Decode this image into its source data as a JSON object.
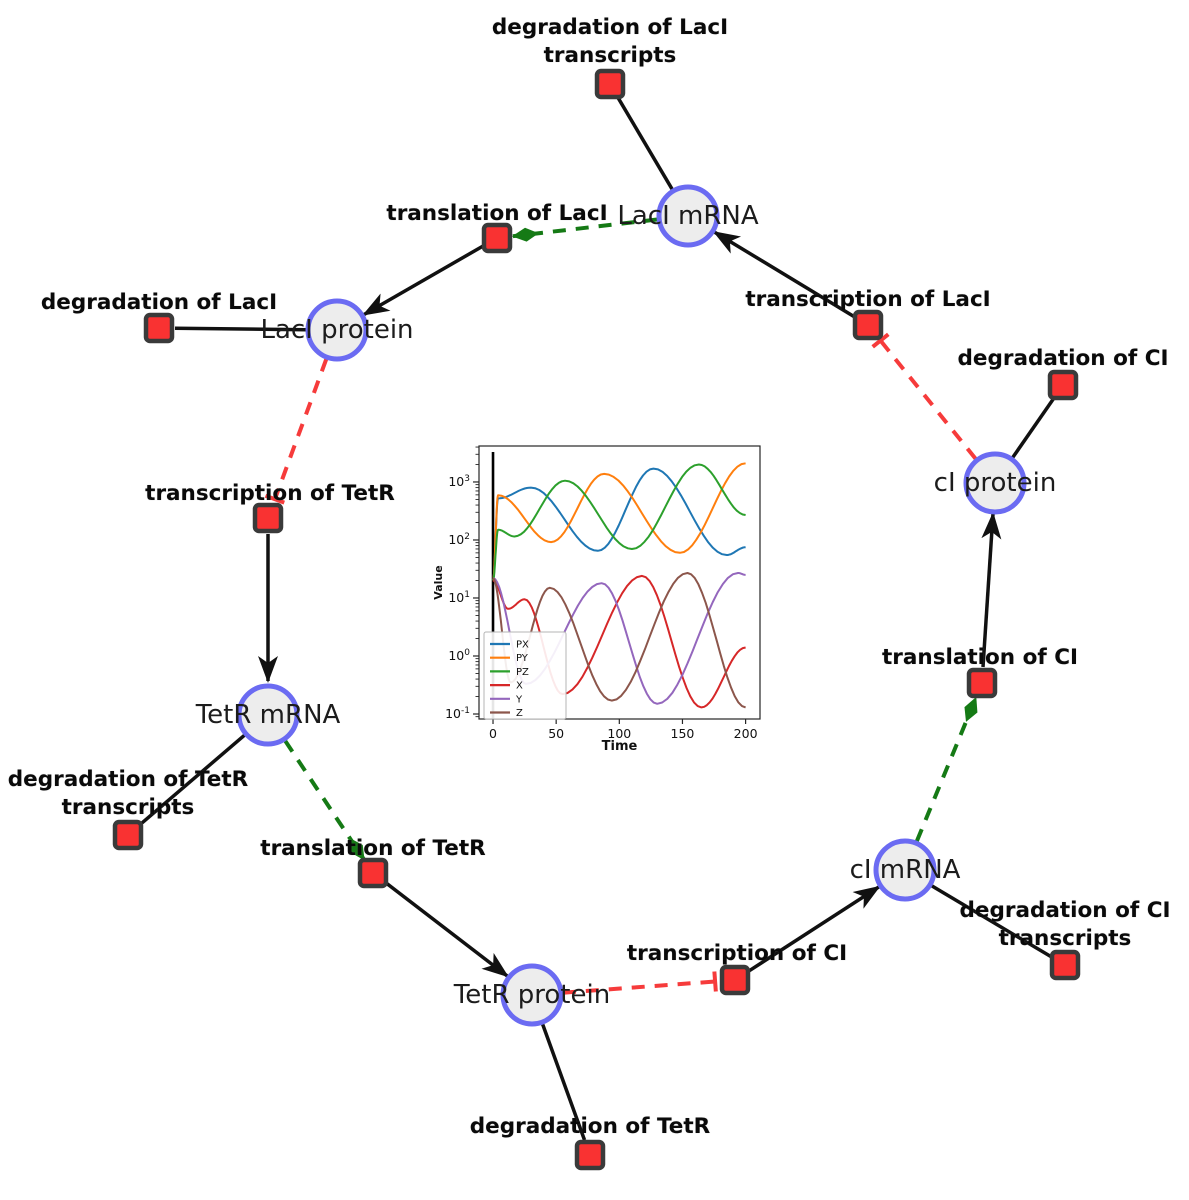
{
  "window": {
    "background": "#ffffff"
  },
  "graph": {
    "colors": {
      "species_fill": "#ededed",
      "species_stroke": "#6b6bf2",
      "reaction_fill": "#f93232",
      "reaction_stroke": "#3a3a3a",
      "production_edge": "#111111",
      "modifier_edge": "#157a15",
      "inhibition_edge": "#f63b3b"
    },
    "species": [
      {
        "id": "laci-mrna",
        "label": "LacI mRNA"
      },
      {
        "id": "laci-protein",
        "label": "LacI protein"
      },
      {
        "id": "tetr-mrna",
        "label": "TetR mRNA"
      },
      {
        "id": "tetr-protein",
        "label": "TetR protein"
      },
      {
        "id": "ci-mrna",
        "label": "cI mRNA"
      },
      {
        "id": "ci-protein",
        "label": "cI protein"
      }
    ],
    "reactions": [
      {
        "id": "deg-laci-transcripts",
        "lines": [
          "degradation of LacI",
          "transcripts"
        ]
      },
      {
        "id": "translation-laci",
        "lines": [
          "translation of LacI"
        ]
      },
      {
        "id": "transcription-laci",
        "lines": [
          "transcription of LacI"
        ]
      },
      {
        "id": "deg-ci",
        "lines": [
          "degradation of CI"
        ]
      },
      {
        "id": "deg-laci",
        "lines": [
          "degradation of LacI"
        ]
      },
      {
        "id": "transcription-tetr",
        "lines": [
          "transcription of TetR"
        ]
      },
      {
        "id": "deg-tetr-transcripts",
        "lines": [
          "degradation of TetR",
          "transcripts"
        ]
      },
      {
        "id": "translation-tetr",
        "lines": [
          "translation of TetR"
        ]
      },
      {
        "id": "deg-tetr",
        "lines": [
          "degradation of TetR"
        ]
      },
      {
        "id": "transcription-ci",
        "lines": [
          "transcription of CI"
        ]
      },
      {
        "id": "deg-ci-transcripts",
        "lines": [
          "degradation of CI",
          "transcripts"
        ]
      },
      {
        "id": "translation-ci",
        "lines": [
          "translation of CI"
        ]
      }
    ],
    "edges": [
      {
        "from": "LacI mRNA",
        "to": "degradation of LacI transcripts",
        "type": "reactant"
      },
      {
        "from": "translation of LacI",
        "to": "LacI protein",
        "type": "product"
      },
      {
        "from": "LacI mRNA",
        "to": "translation of LacI",
        "type": "modifier"
      },
      {
        "from": "transcription of LacI",
        "to": "LacI mRNA",
        "type": "product"
      },
      {
        "from": "cI protein",
        "to": "transcription of LacI",
        "type": "inhibition"
      },
      {
        "from": "LacI protein",
        "to": "degradation of LacI",
        "type": "reactant"
      },
      {
        "from": "LacI protein",
        "to": "transcription of TetR",
        "type": "inhibition"
      },
      {
        "from": "transcription of TetR",
        "to": "TetR mRNA",
        "type": "product"
      },
      {
        "from": "TetR mRNA",
        "to": "degradation of TetR transcripts",
        "type": "reactant"
      },
      {
        "from": "TetR mRNA",
        "to": "translation of TetR",
        "type": "modifier"
      },
      {
        "from": "translation of TetR",
        "to": "TetR protein",
        "type": "product"
      },
      {
        "from": "TetR protein",
        "to": "degradation of TetR",
        "type": "reactant"
      },
      {
        "from": "TetR protein",
        "to": "transcription of CI",
        "type": "inhibition"
      },
      {
        "from": "transcription of CI",
        "to": "cI mRNA",
        "type": "product"
      },
      {
        "from": "cI mRNA",
        "to": "degradation of CI transcripts",
        "type": "reactant"
      },
      {
        "from": "cI mRNA",
        "to": "translation of CI",
        "type": "modifier"
      },
      {
        "from": "translation of CI",
        "to": "cI protein",
        "type": "product"
      },
      {
        "from": "cI protein",
        "to": "degradation of CI",
        "type": "reactant"
      }
    ]
  },
  "chart_data": {
    "type": "line",
    "title": "",
    "xlabel": "Time",
    "ylabel": "Value",
    "xscale": "linear",
    "yscale": "log",
    "xlim": [
      -11.1,
      211.4
    ],
    "ylim": [
      0.082,
      4170
    ],
    "xticks": [
      0,
      50,
      100,
      150,
      200
    ],
    "ytick_exponents": [
      3,
      2,
      1,
      0,
      -1
    ],
    "grid": false,
    "legend_position": "lower left",
    "vline": {
      "x": 0,
      "color": "#000000"
    },
    "series": [
      {
        "name": "PX",
        "color": "#1f77b4",
        "points": [
          [
            0,
            20
          ],
          [
            4,
            520
          ],
          [
            30,
            800
          ],
          [
            83,
            65
          ],
          [
            127,
            1700
          ],
          [
            185,
            55
          ],
          [
            200,
            75
          ]
        ]
      },
      {
        "name": "PY",
        "color": "#ff7f0e",
        "points": [
          [
            0,
            20
          ],
          [
            4,
            590
          ],
          [
            46,
            92
          ],
          [
            88,
            1380
          ],
          [
            148,
            60
          ],
          [
            200,
            2100
          ]
        ]
      },
      {
        "name": "PZ",
        "color": "#2ca02c",
        "points": [
          [
            0,
            20
          ],
          [
            4,
            150
          ],
          [
            17,
            115
          ],
          [
            57,
            1050
          ],
          [
            110,
            70
          ],
          [
            163,
            2000
          ],
          [
            200,
            270
          ]
        ]
      },
      {
        "name": "X",
        "color": "#d62728",
        "points": [
          [
            0,
            20
          ],
          [
            12,
            6.5
          ],
          [
            25,
            9.5
          ],
          [
            55,
            0.22
          ],
          [
            118,
            24
          ],
          [
            165,
            0.13
          ],
          [
            200,
            1.4
          ]
        ]
      },
      {
        "name": "Y",
        "color": "#9467bd",
        "points": [
          [
            0,
            22
          ],
          [
            26,
            0.33
          ],
          [
            86,
            18
          ],
          [
            130,
            0.15
          ],
          [
            194,
            27
          ],
          [
            200,
            25
          ]
        ]
      },
      {
        "name": "Z",
        "color": "#8c564b",
        "points": [
          [
            0,
            22
          ],
          [
            14,
            0.35
          ],
          [
            45,
            15
          ],
          [
            94,
            0.17
          ],
          [
            154,
            27
          ],
          [
            200,
            0.13
          ]
        ]
      }
    ]
  }
}
